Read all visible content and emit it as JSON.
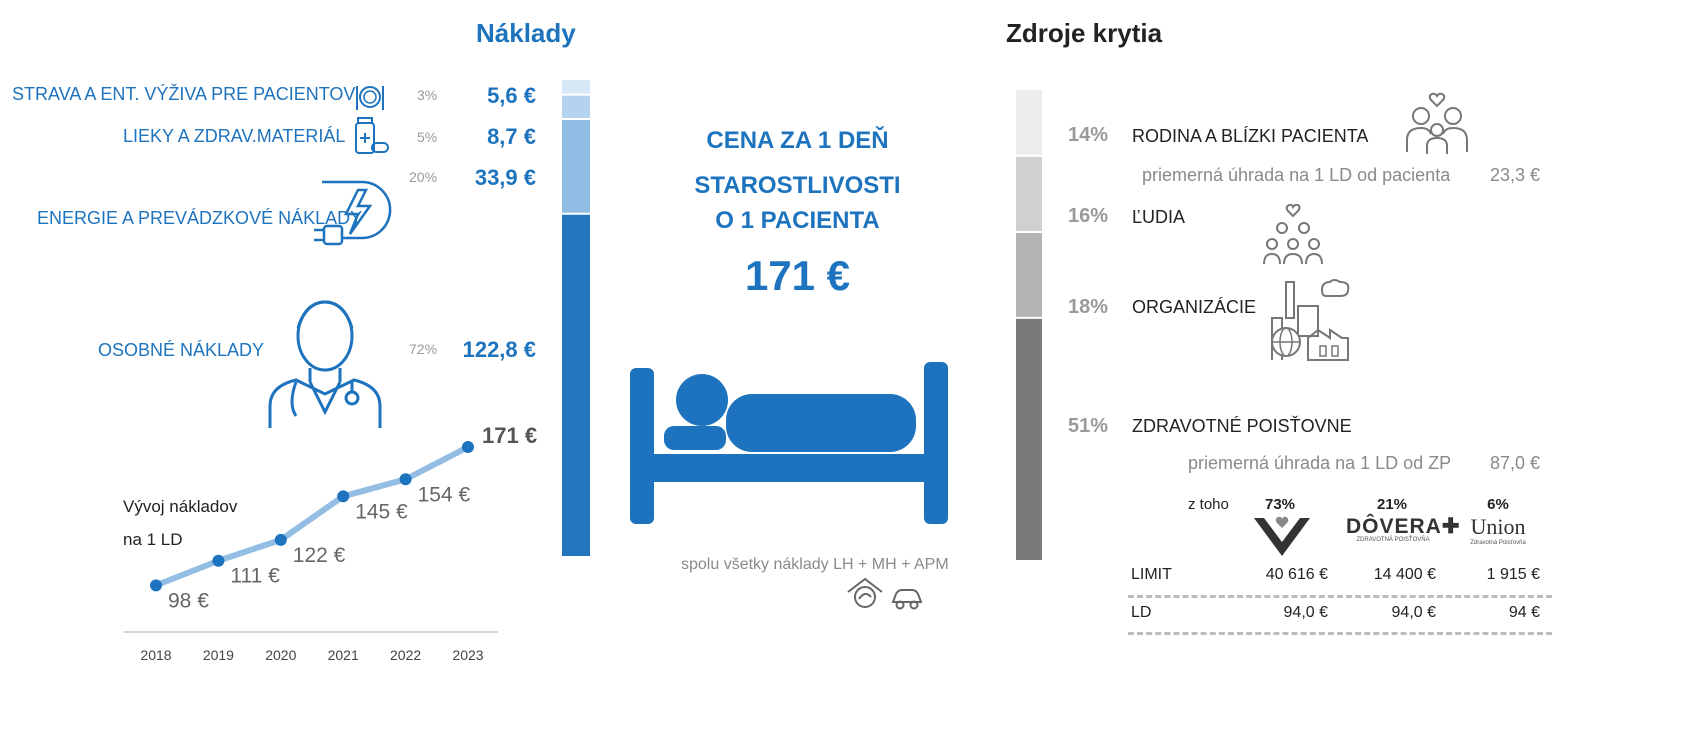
{
  "naklady": {
    "title": "Náklady",
    "items": [
      {
        "label": "STRAVA A ENT. VÝŽIVA PRE PACIENTOV",
        "pct": "3%",
        "value": "5,6 €",
        "icon": "food-plate-icon"
      },
      {
        "label": "LIEKY A ZDRAV.MATERIÁL",
        "pct": "5%",
        "value": "8,7 €",
        "icon": "medicine-icon"
      },
      {
        "label": "ENERGIE A PREVÁDZKOVÉ NÁKLADY",
        "pct": "20%",
        "value": "33,9 €",
        "icon": "energy-plug-icon"
      },
      {
        "label": "OSOBNÉ NÁKLADY",
        "pct": "72%",
        "value": "122,8 €",
        "icon": "doctor-icon"
      }
    ],
    "bar_colors": [
      "#d6e8f7",
      "#b4d3ee",
      "#8fbde4",
      "#2176bd"
    ]
  },
  "center": {
    "line1": "CENA ZA 1 DEŇ",
    "line2": "STAROSTLIVOSTI",
    "line3": "O 1 PACIENTA",
    "price": "171 €",
    "footnote": "spolu všetky náklady LH + MH + APM",
    "icons": [
      "home-care-icon",
      "car-icon"
    ]
  },
  "zdroje": {
    "title": "Zdroje krytia",
    "items": [
      {
        "pct": "14%",
        "label": "RODINA A BLÍZKI PACIENTA",
        "icon": "family-icon"
      },
      {
        "pct": "16%",
        "label": "ĽUDIA",
        "icon": "people-icon"
      },
      {
        "pct": "18%",
        "label": "ORGANIZÁCIE",
        "icon": "factory-icon"
      },
      {
        "pct": "51%",
        "label": "ZDRAVOTNÉ POISŤOVNE"
      }
    ],
    "bar_colors": [
      "#ececec",
      "#d0d0d0",
      "#b3b3b3",
      "#7a7a7a"
    ],
    "family_note": {
      "label": "priemerná úhrada na 1 LD od pacienta",
      "value": "23,3 €"
    },
    "zp_note": {
      "label": "priemerná úhrada na 1 LD od ZP",
      "value": "87,0 €"
    },
    "insurers": {
      "ztoho": "z toho",
      "list": [
        {
          "pct": "73%",
          "logo": "vszp-logo",
          "limit": "40 616 €",
          "ld": "94,0 €"
        },
        {
          "pct": "21%",
          "logo": "dovera-logo",
          "logo_text": "DÔVERA✚",
          "logo_sub": "ZDRAVOTNÁ POISŤOVŇA",
          "limit": "14 400 €",
          "ld": "94,0 €"
        },
        {
          "pct": "6%",
          "logo": "union-logo",
          "logo_text": "Union",
          "logo_sub": "Zdravotná Poisťovňa",
          "limit": "1 915 €",
          "ld": "94 €"
        }
      ],
      "limit_label": "LIMIT",
      "ld_label": "LD"
    }
  },
  "chart_data": {
    "type": "line",
    "title": "Vývoj nákladov na 1 LD",
    "x": [
      "2018",
      "2019",
      "2020",
      "2021",
      "2022",
      "2023"
    ],
    "values": [
      98,
      111,
      122,
      145,
      154,
      171
    ],
    "labels": [
      "98 €",
      "111 €",
      "122 €",
      "145 €",
      "154 €",
      "171 €"
    ],
    "ylim": [
      85,
      180
    ],
    "line_color": "#93bde3",
    "point_color": "#1e73be"
  }
}
